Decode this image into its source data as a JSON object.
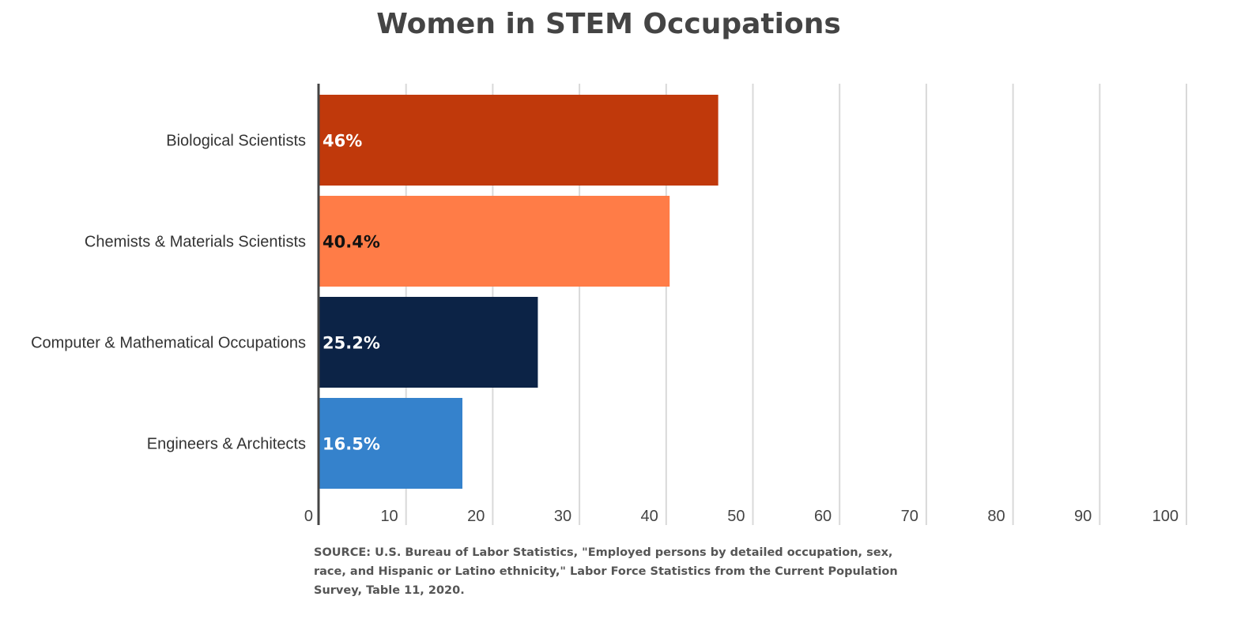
{
  "chart_data": {
    "type": "bar",
    "orientation": "horizontal",
    "title": "Women in STEM Occupations",
    "categories": [
      "Biological Scientists",
      "Chemists & Materials Scientists",
      "Computer & Mathematical Occupations",
      "Engineers & Architects"
    ],
    "values": [
      46,
      40.4,
      25.2,
      16.5
    ],
    "data_labels": [
      "46%",
      "40.4%",
      "25.2%",
      "16.5%"
    ],
    "bar_colors": [
      "#c0390b",
      "#ff7c47",
      "#0c2346",
      "#3582cc"
    ],
    "label_colors": [
      "#ffffff",
      "#111111",
      "#ffffff",
      "#ffffff"
    ],
    "xlim": [
      0,
      100
    ],
    "x_ticks": [
      "0",
      "10",
      "20",
      "30",
      "40",
      "50",
      "60",
      "70",
      "80",
      "90",
      "100"
    ],
    "grid": true,
    "legend": "none"
  },
  "source": "SOURCE: U.S. Bureau of Labor Statistics, \"Employed persons by detailed occupation, sex, race, and Hispanic or Latino ethnicity,\" Labor Force Statistics from the Current Population Survey, Table 11, 2020."
}
